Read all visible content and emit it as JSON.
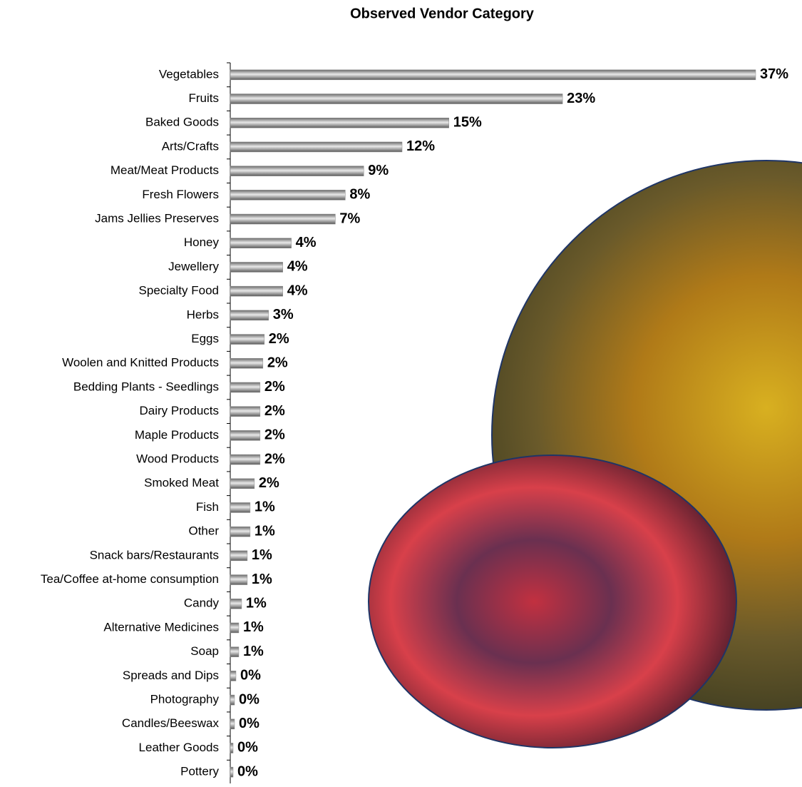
{
  "chart_data": {
    "type": "bar",
    "orientation": "horizontal",
    "title": "Observed Vendor Category",
    "categories": [
      "Vegetables",
      "Fruits",
      "Baked Goods",
      "Arts/Crafts",
      "Meat/Meat Products",
      "Fresh Flowers",
      "Jams Jellies Preserves",
      "Honey",
      "Jewellery",
      "Specialty Food",
      "Herbs",
      "Eggs",
      "Woolen and Knitted Products",
      "Bedding Plants - Seedlings",
      "Dairy Products",
      "Maple Products",
      "Wood Products",
      "Smoked Meat",
      "Fish",
      "Other",
      "Snack bars/Restaurants",
      "Tea/Coffee at-home consumption",
      "Candy",
      "Alternative Medicines",
      "Soap",
      "Spreads and Dips",
      "Photography",
      "Candles/Beeswax",
      "Leather Goods",
      "Pottery"
    ],
    "values": [
      37.0,
      23.4,
      15.4,
      12.1,
      9.4,
      8.1,
      7.4,
      4.3,
      3.7,
      3.7,
      2.7,
      2.4,
      2.3,
      2.1,
      2.1,
      2.1,
      2.1,
      1.7,
      1.4,
      1.4,
      1.2,
      1.2,
      0.8,
      0.6,
      0.6,
      0.4,
      0.3,
      0.3,
      0.2,
      0.2
    ],
    "value_labels": [
      "37%",
      "23%",
      "15%",
      "12%",
      "9%",
      "8%",
      "7%",
      "4%",
      "4%",
      "4%",
      "3%",
      "2%",
      "2%",
      "2%",
      "2%",
      "2%",
      "2%",
      "2%",
      "1%",
      "1%",
      "1%",
      "1%",
      "1%",
      "1%",
      "1%",
      "0%",
      "0%",
      "0%",
      "0%",
      "0%"
    ],
    "color": "#8c8c8c",
    "xlim": [
      0,
      37
    ]
  }
}
